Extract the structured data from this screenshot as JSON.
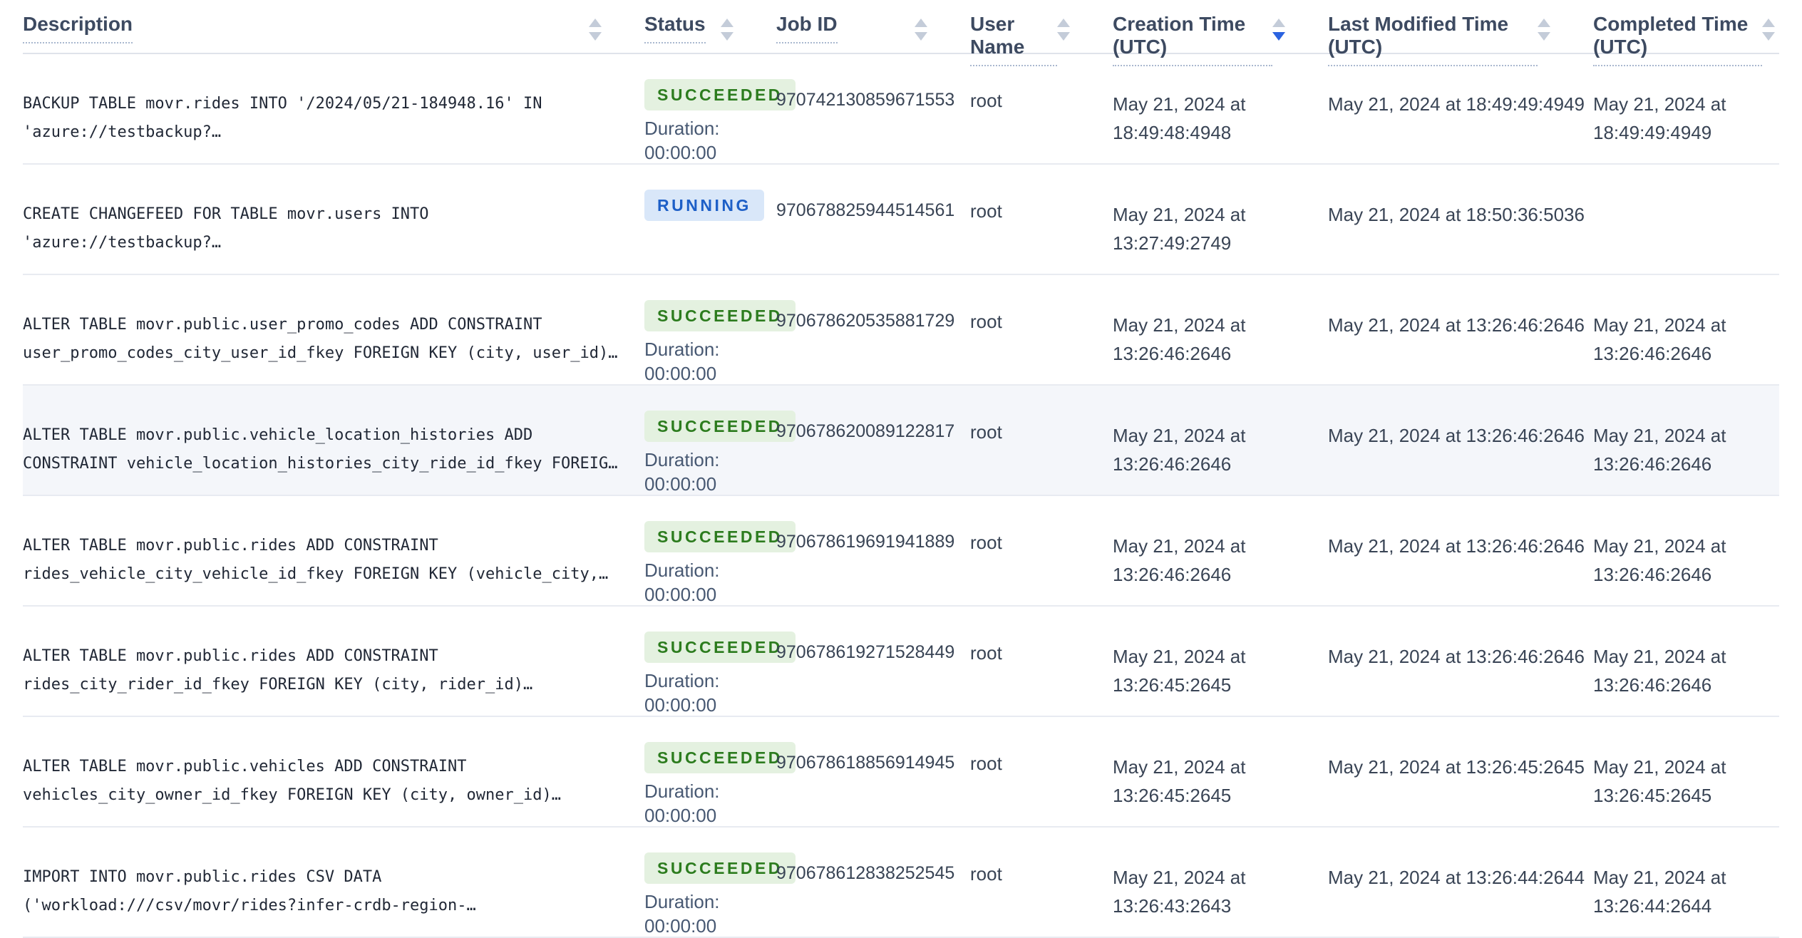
{
  "colors": {
    "header_text": "#3d4a61",
    "body_text": "#394455",
    "description_text": "#212836",
    "row_divider": "#e8ebf1",
    "row_highlight_bg": "#f4f6fa",
    "sort_arrow_inactive": "#c4ccd9",
    "sort_arrow_active": "#2b63e0",
    "badge_succeeded_bg": "#e4f1e0",
    "badge_succeeded_text": "#2c7c1e",
    "badge_running_bg": "#d9e7f9",
    "badge_running_text": "#1d5fc7"
  },
  "icons": {
    "sort": "sort-arrows-up-down"
  },
  "table": {
    "columns": [
      {
        "label": "Description",
        "sort": "none"
      },
      {
        "label": "Status",
        "sort": "none"
      },
      {
        "label": "Job ID",
        "sort": "none"
      },
      {
        "label": "User Name",
        "sort": "none"
      },
      {
        "label": "Creation Time (UTC)",
        "sort": "desc"
      },
      {
        "label": "Last Modified Time (UTC)",
        "sort": "none"
      },
      {
        "label": "Completed Time (UTC)",
        "sort": "none"
      }
    ],
    "rows": [
      {
        "description": "BACKUP TABLE movr.rides INTO '/2024/05/21-184948.16' IN 'azure://testbackup?…",
        "status": "SUCCEEDED",
        "duration_label": "Duration:",
        "duration": "00:00:00",
        "job_id": "970742130859671553",
        "user_name": "root",
        "creation_time": "May 21, 2024 at 18:49:48:4948",
        "last_modified_time": "May 21, 2024 at 18:49:49:4949",
        "completed_time": "May 21, 2024 at 18:49:49:4949",
        "highlighted": false
      },
      {
        "description": "CREATE CHANGEFEED FOR TABLE movr.users INTO 'azure://testbackup?…",
        "status": "RUNNING",
        "duration_label": "",
        "duration": "",
        "job_id": "970678825944514561",
        "user_name": "root",
        "creation_time": "May 21, 2024 at 13:27:49:2749",
        "last_modified_time": "May 21, 2024 at 18:50:36:5036",
        "completed_time": "",
        "highlighted": false
      },
      {
        "description": "ALTER TABLE movr.public.user_promo_codes ADD CONSTRAINT user_promo_codes_city_user_id_fkey FOREIGN KEY (city, user_id)…",
        "status": "SUCCEEDED",
        "duration_label": "Duration:",
        "duration": "00:00:00",
        "job_id": "970678620535881729",
        "user_name": "root",
        "creation_time": "May 21, 2024 at 13:26:46:2646",
        "last_modified_time": "May 21, 2024 at 13:26:46:2646",
        "completed_time": "May 21, 2024 at 13:26:46:2646",
        "highlighted": false
      },
      {
        "description": "ALTER TABLE movr.public.vehicle_location_histories ADD CONSTRAINT vehicle_location_histories_city_ride_id_fkey FOREIG…",
        "status": "SUCCEEDED",
        "duration_label": "Duration:",
        "duration": "00:00:00",
        "job_id": "970678620089122817",
        "user_name": "root",
        "creation_time": "May 21, 2024 at 13:26:46:2646",
        "last_modified_time": "May 21, 2024 at 13:26:46:2646",
        "completed_time": "May 21, 2024 at 13:26:46:2646",
        "highlighted": true
      },
      {
        "description": "ALTER TABLE movr.public.rides ADD CONSTRAINT rides_vehicle_city_vehicle_id_fkey FOREIGN KEY (vehicle_city,…",
        "status": "SUCCEEDED",
        "duration_label": "Duration:",
        "duration": "00:00:00",
        "job_id": "970678619691941889",
        "user_name": "root",
        "creation_time": "May 21, 2024 at 13:26:46:2646",
        "last_modified_time": "May 21, 2024 at 13:26:46:2646",
        "completed_time": "May 21, 2024 at 13:26:46:2646",
        "highlighted": false
      },
      {
        "description": "ALTER TABLE movr.public.rides ADD CONSTRAINT rides_city_rider_id_fkey FOREIGN KEY (city, rider_id)…",
        "status": "SUCCEEDED",
        "duration_label": "Duration:",
        "duration": "00:00:00",
        "job_id": "970678619271528449",
        "user_name": "root",
        "creation_time": "May 21, 2024 at 13:26:45:2645",
        "last_modified_time": "May 21, 2024 at 13:26:46:2646",
        "completed_time": "May 21, 2024 at 13:26:46:2646",
        "highlighted": false
      },
      {
        "description": "ALTER TABLE movr.public.vehicles ADD CONSTRAINT vehicles_city_owner_id_fkey FOREIGN KEY (city, owner_id)…",
        "status": "SUCCEEDED",
        "duration_label": "Duration:",
        "duration": "00:00:00",
        "job_id": "970678618856914945",
        "user_name": "root",
        "creation_time": "May 21, 2024 at 13:26:45:2645",
        "last_modified_time": "May 21, 2024 at 13:26:45:2645",
        "completed_time": "May 21, 2024 at 13:26:45:2645",
        "highlighted": false
      },
      {
        "description": "IMPORT INTO movr.public.rides CSV DATA ('workload:///csv/movr/rides?infer-crdb-region-…",
        "status": "SUCCEEDED",
        "duration_label": "Duration:",
        "duration": "00:00:00",
        "job_id": "970678612838252545",
        "user_name": "root",
        "creation_time": "May 21, 2024 at 13:26:43:2643",
        "last_modified_time": "May 21, 2024 at 13:26:44:2644",
        "completed_time": "May 21, 2024 at 13:26:44:2644",
        "highlighted": false
      }
    ]
  }
}
